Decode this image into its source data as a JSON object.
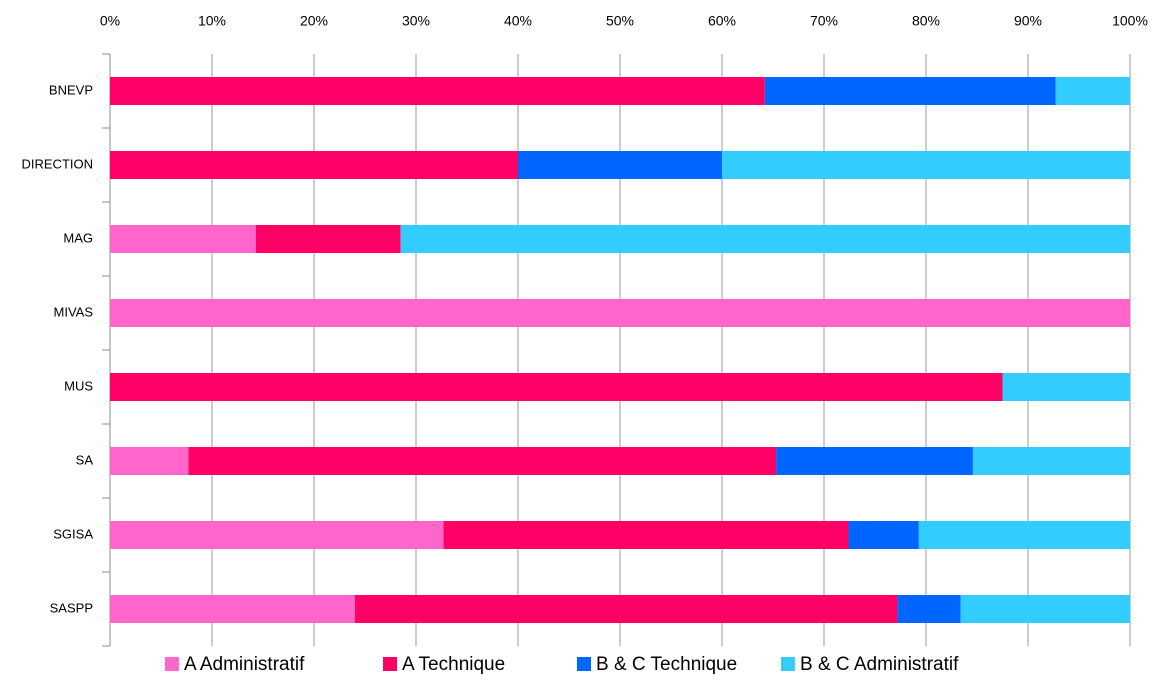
{
  "chart_data": {
    "type": "stacked_barh",
    "categories": [
      "BNEVP",
      "DIRECTION",
      "MAG",
      "MIVAS",
      "MUS",
      "SA",
      "SGISA",
      "SASPP"
    ],
    "series": [
      {
        "name": "A Administratif",
        "color": "#ff66cc",
        "values": [
          0,
          0,
          14.3,
          100,
          0,
          7.7,
          32.7,
          24.0
        ]
      },
      {
        "name": "A Technique",
        "color": "#ff0066",
        "values": [
          64.2,
          40,
          14.2,
          0,
          87.5,
          57.6,
          39.7,
          53.2
        ]
      },
      {
        "name": "B & C Technique",
        "color": "#0066ff",
        "values": [
          28.5,
          20,
          0,
          0,
          0,
          19.3,
          6.9,
          6.2
        ]
      },
      {
        "name": "B & C Administratif",
        "color": "#33ccff",
        "values": [
          7.3,
          40,
          71.5,
          0,
          12.5,
          15.4,
          20.7,
          16.6
        ]
      }
    ],
    "xlim": [
      0,
      100
    ],
    "xticks": [
      {
        "value": 0,
        "label": "0%"
      },
      {
        "value": 10,
        "label": "10%"
      },
      {
        "value": 20,
        "label": "20%"
      },
      {
        "value": 30,
        "label": "30%"
      },
      {
        "value": 40,
        "label": "40%"
      },
      {
        "value": 50,
        "label": "50%"
      },
      {
        "value": 60,
        "label": "60%"
      },
      {
        "value": 70,
        "label": "70%"
      },
      {
        "value": 80,
        "label": "80%"
      },
      {
        "value": 90,
        "label": "90%"
      },
      {
        "value": 100,
        "label": "100%"
      }
    ],
    "grid": true,
    "legend": "bottom"
  }
}
